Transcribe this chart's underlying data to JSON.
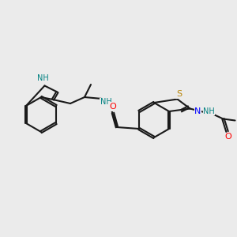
{
  "background_color": "#ebebeb",
  "bond_color": "#1a1a1a",
  "bond_width": 1.5,
  "atom_colors": {
    "N": "#0000ff",
    "NH": "#008080",
    "S": "#b8860b",
    "O": "#ff0000",
    "C": "#1a1a1a"
  }
}
